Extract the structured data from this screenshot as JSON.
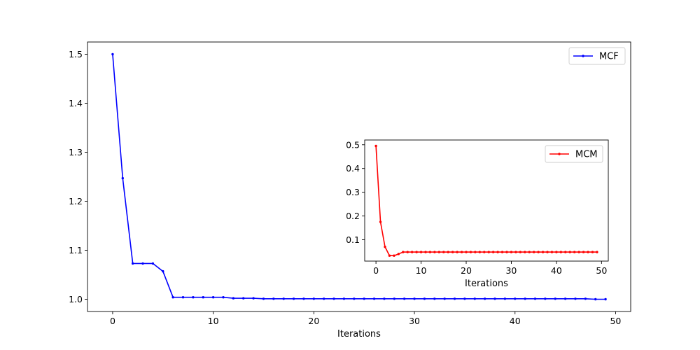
{
  "chart_data": [
    {
      "type": "line",
      "xlabel": "Iterations",
      "ylabel": "",
      "xlim": [
        -2.5,
        51.5
      ],
      "ylim": [
        0.975,
        1.525
      ],
      "xticks": [
        0,
        10,
        20,
        30,
        40,
        50
      ],
      "xtick_labels": [
        "0",
        "10",
        "20",
        "30",
        "40",
        "50"
      ],
      "yticks": [
        1.0,
        1.1,
        1.2,
        1.3,
        1.4,
        1.5
      ],
      "ytick_labels": [
        "1.0",
        "1.1",
        "1.2",
        "1.3",
        "1.4",
        "1.5"
      ],
      "legend_position": "top-right",
      "series": [
        {
          "name": "MCF",
          "color": "#0000ff",
          "x": [
            0,
            1,
            2,
            3,
            4,
            5,
            6,
            7,
            8,
            9,
            10,
            11,
            12,
            13,
            14,
            15,
            16,
            17,
            18,
            19,
            20,
            21,
            22,
            23,
            24,
            25,
            26,
            27,
            28,
            29,
            30,
            31,
            32,
            33,
            34,
            35,
            36,
            37,
            38,
            39,
            40,
            41,
            42,
            43,
            44,
            45,
            46,
            47,
            48,
            49
          ],
          "values": [
            1.5,
            1.247,
            1.073,
            1.073,
            1.073,
            1.057,
            1.004,
            1.004,
            1.004,
            1.004,
            1.004,
            1.004,
            1.002,
            1.002,
            1.002,
            1.001,
            1.001,
            1.001,
            1.001,
            1.001,
            1.001,
            1.001,
            1.001,
            1.001,
            1.001,
            1.001,
            1.001,
            1.001,
            1.001,
            1.001,
            1.001,
            1.001,
            1.001,
            1.001,
            1.001,
            1.001,
            1.001,
            1.001,
            1.001,
            1.001,
            1.001,
            1.001,
            1.001,
            1.001,
            1.001,
            1.001,
            1.001,
            1.001,
            1.0,
            1.0
          ]
        }
      ]
    },
    {
      "type": "line",
      "xlabel": "Iterations",
      "ylabel": "",
      "xlim": [
        -2.5,
        51.5
      ],
      "ylim": [
        0.01,
        0.52
      ],
      "xticks": [
        0,
        10,
        20,
        30,
        40,
        50
      ],
      "xtick_labels": [
        "0",
        "10",
        "20",
        "30",
        "40",
        "50"
      ],
      "yticks": [
        0.1,
        0.2,
        0.3,
        0.4,
        0.5
      ],
      "ytick_labels": [
        "0.1",
        "0.2",
        "0.3",
        "0.4",
        "0.5"
      ],
      "legend_position": "top-right",
      "series": [
        {
          "name": "MCM",
          "color": "#ff0000",
          "x": [
            0,
            1,
            2,
            3,
            4,
            5,
            6,
            7,
            8,
            9,
            10,
            11,
            12,
            13,
            14,
            15,
            16,
            17,
            18,
            19,
            20,
            21,
            22,
            23,
            24,
            25,
            26,
            27,
            28,
            29,
            30,
            31,
            32,
            33,
            34,
            35,
            36,
            37,
            38,
            39,
            40,
            41,
            42,
            43,
            44,
            45,
            46,
            47,
            48,
            49
          ],
          "values": [
            0.495,
            0.175,
            0.07,
            0.033,
            0.033,
            0.04,
            0.048,
            0.048,
            0.048,
            0.048,
            0.048,
            0.048,
            0.048,
            0.048,
            0.048,
            0.048,
            0.048,
            0.048,
            0.048,
            0.048,
            0.048,
            0.048,
            0.048,
            0.048,
            0.048,
            0.048,
            0.048,
            0.048,
            0.048,
            0.048,
            0.048,
            0.048,
            0.048,
            0.048,
            0.048,
            0.048,
            0.048,
            0.048,
            0.048,
            0.048,
            0.048,
            0.048,
            0.048,
            0.048,
            0.048,
            0.048,
            0.048,
            0.048,
            0.048,
            0.048
          ]
        }
      ]
    }
  ]
}
